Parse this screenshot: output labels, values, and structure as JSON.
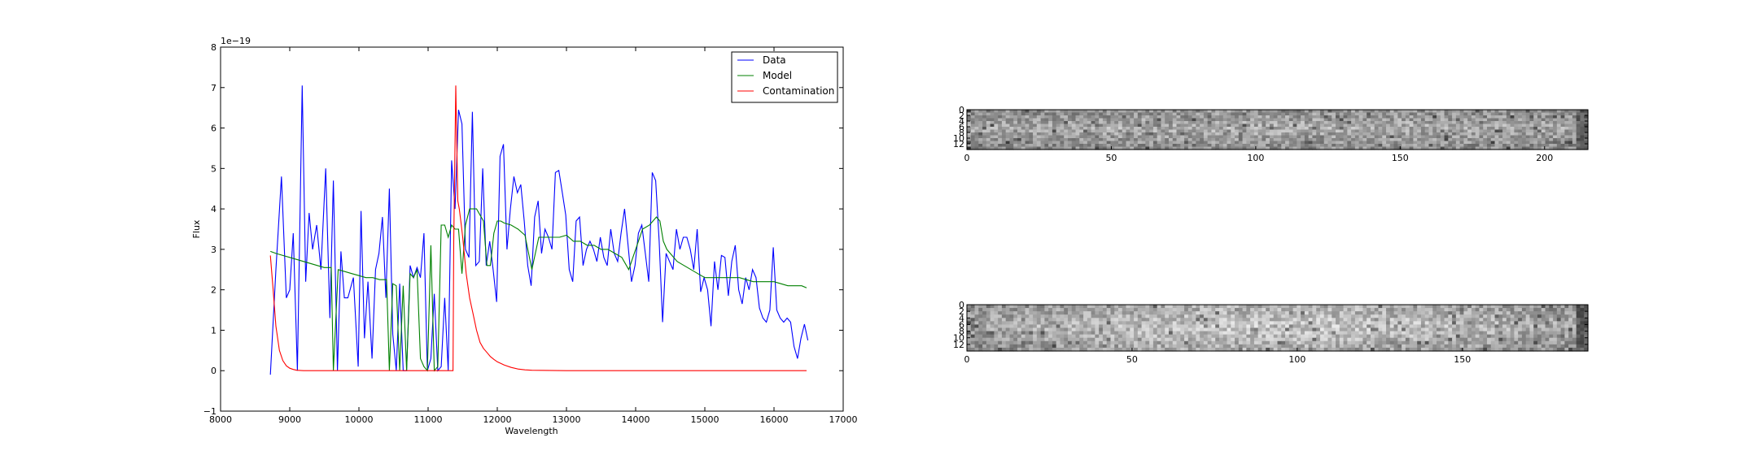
{
  "chart_data": [
    {
      "type": "line",
      "title": "",
      "xlabel": "Wavelength",
      "ylabel": "Flux",
      "offset_text": "1e−19",
      "xlim": [
        8000,
        17000
      ],
      "ylim": [
        -1,
        8
      ],
      "xticks": [
        8000,
        9000,
        10000,
        11000,
        12000,
        13000,
        14000,
        15000,
        16000,
        17000
      ],
      "xtick_labels": [
        "8000",
        "9000",
        "10000",
        "11000",
        "12000",
        "13000",
        "14000",
        "15000",
        "16000",
        "17000"
      ],
      "yticks": [
        -1,
        0,
        1,
        2,
        3,
        4,
        5,
        6,
        7,
        8
      ],
      "ytick_labels": [
        "−1",
        "0",
        "1",
        "2",
        "3",
        "4",
        "5",
        "6",
        "7",
        "8"
      ],
      "legend_position": "top-right",
      "grid": false,
      "series": [
        {
          "name": "Data",
          "color": "#0000ff",
          "x": [
            8720,
            8800,
            8880,
            8950,
            9000,
            9050,
            9110,
            9180,
            9230,
            9280,
            9330,
            9390,
            9450,
            9520,
            9580,
            9630,
            9690,
            9740,
            9790,
            9840,
            9920,
            9990,
            10030,
            10080,
            10130,
            10190,
            10240,
            10290,
            10340,
            10390,
            10440,
            10490,
            10540,
            10590,
            10640,
            10690,
            10740,
            10790,
            10840,
            10890,
            10940,
            10990,
            11040,
            11090,
            11140,
            11190,
            11240,
            11290,
            11340,
            11390,
            11440,
            11490,
            11540,
            11590,
            11640,
            11690,
            11740,
            11790,
            11840,
            11890,
            11940,
            11990,
            12040,
            12090,
            12140,
            12190,
            12240,
            12290,
            12340,
            12390,
            12440,
            12490,
            12540,
            12590,
            12640,
            12690,
            12740,
            12790,
            12840,
            12890,
            12940,
            12990,
            13040,
            13090,
            13140,
            13190,
            13240,
            13290,
            13340,
            13390,
            13440,
            13490,
            13540,
            13590,
            13640,
            13690,
            13740,
            13790,
            13840,
            13890,
            13940,
            13990,
            14040,
            14090,
            14140,
            14190,
            14240,
            14290,
            14340,
            14390,
            14440,
            14490,
            14540,
            14590,
            14640,
            14690,
            14740,
            14790,
            14840,
            14890,
            14940,
            14990,
            15040,
            15090,
            15140,
            15190,
            15240,
            15290,
            15340,
            15390,
            15440,
            15490,
            15540,
            15590,
            15640,
            15690,
            15740,
            15790,
            15840,
            15890,
            15940,
            15990,
            16040,
            16090,
            16140,
            16190,
            16240,
            16290,
            16340,
            16390,
            16440,
            16490
          ],
          "y": [
            -0.1,
            2.5,
            4.8,
            1.8,
            2.0,
            3.4,
            0.0,
            7.05,
            2.2,
            3.9,
            3.0,
            3.6,
            2.5,
            5.0,
            1.3,
            4.7,
            0.0,
            2.95,
            1.8,
            1.8,
            2.3,
            0.1,
            3.95,
            0.8,
            2.2,
            0.3,
            2.5,
            2.9,
            3.8,
            1.8,
            4.5,
            0.9,
            0.0,
            2.15,
            0.0,
            0.0,
            2.6,
            2.3,
            2.55,
            2.3,
            3.4,
            0.0,
            0.3,
            1.9,
            0.0,
            0.1,
            1.8,
            0.0,
            5.2,
            4.0,
            6.45,
            6.1,
            3.0,
            2.8,
            6.4,
            2.6,
            2.7,
            5.0,
            2.6,
            3.2,
            2.5,
            1.7,
            5.3,
            5.6,
            3.0,
            4.0,
            4.8,
            4.4,
            4.6,
            3.7,
            2.6,
            2.1,
            3.8,
            4.2,
            2.9,
            3.5,
            3.3,
            3.0,
            4.9,
            4.95,
            4.4,
            3.85,
            2.5,
            2.2,
            3.7,
            3.8,
            2.6,
            3.0,
            3.2,
            3.0,
            2.7,
            3.3,
            2.8,
            2.6,
            3.5,
            2.9,
            2.7,
            3.4,
            4.0,
            3.1,
            2.2,
            2.6,
            3.4,
            3.6,
            2.9,
            2.2,
            4.9,
            4.7,
            3.2,
            1.2,
            2.9,
            2.7,
            2.5,
            3.5,
            3.0,
            3.3,
            3.3,
            3.0,
            2.5,
            3.5,
            1.95,
            2.3,
            2.0,
            1.1,
            2.7,
            2.0,
            2.85,
            2.8,
            1.85,
            2.7,
            3.1,
            2.0,
            1.65,
            2.3,
            2.0,
            2.5,
            2.3,
            1.55,
            1.3,
            1.2,
            1.5,
            3.05,
            1.5,
            1.3,
            1.2,
            1.3,
            1.2,
            0.6,
            0.3,
            0.8,
            1.15,
            0.75
          ]
        },
        {
          "name": "Model",
          "color": "#008000",
          "x": [
            8720,
            8800,
            8900,
            9000,
            9100,
            9200,
            9300,
            9400,
            9500,
            9600,
            9630,
            9700,
            9800,
            9900,
            10000,
            10100,
            10200,
            10300,
            10400,
            10440,
            10490,
            10540,
            10590,
            10640,
            10690,
            10740,
            10790,
            10840,
            10890,
            10940,
            10990,
            11040,
            11090,
            11140,
            11190,
            11240,
            11290,
            11340,
            11390,
            11440,
            11490,
            11540,
            11600,
            11650,
            11700,
            11800,
            11850,
            11900,
            11950,
            12000,
            12050,
            12100,
            12200,
            12300,
            12400,
            12500,
            12600,
            12650,
            12700,
            12800,
            12900,
            13000,
            13100,
            13200,
            13300,
            13400,
            13500,
            13600,
            13700,
            13800,
            13900,
            14000,
            14100,
            14200,
            14300,
            14350,
            14400,
            14450,
            14500,
            14600,
            14700,
            14800,
            14900,
            15000,
            15100,
            15200,
            15300,
            15400,
            15500,
            15600,
            15700,
            15800,
            15900,
            16000,
            16100,
            16200,
            16300,
            16400,
            16470
          ],
          "y": [
            2.95,
            2.9,
            2.85,
            2.8,
            2.75,
            2.7,
            2.65,
            2.6,
            2.55,
            2.55,
            0.0,
            2.5,
            2.45,
            2.4,
            2.35,
            2.3,
            2.3,
            2.25,
            2.25,
            0.0,
            2.15,
            2.1,
            0.0,
            2.1,
            0.0,
            2.4,
            2.3,
            2.5,
            0.3,
            0.1,
            0.0,
            3.1,
            0.0,
            0.1,
            3.6,
            3.6,
            3.3,
            3.6,
            3.5,
            3.5,
            2.4,
            3.6,
            4.0,
            4.0,
            4.0,
            3.7,
            2.6,
            2.6,
            3.4,
            3.7,
            3.7,
            3.65,
            3.6,
            3.5,
            3.35,
            2.5,
            3.3,
            3.3,
            3.3,
            3.3,
            3.3,
            3.35,
            3.2,
            3.2,
            3.1,
            3.1,
            3.0,
            3.0,
            2.9,
            2.8,
            2.5,
            3.0,
            3.5,
            3.6,
            3.8,
            3.7,
            3.2,
            3.0,
            2.9,
            2.7,
            2.6,
            2.5,
            2.4,
            2.3,
            2.3,
            2.3,
            2.3,
            2.3,
            2.3,
            2.25,
            2.2,
            2.2,
            2.2,
            2.2,
            2.15,
            2.1,
            2.1,
            2.1,
            2.05
          ],
          "zero_segments_note": ""
        },
        {
          "name": "Contamination",
          "color": "#ff0000",
          "x": [
            8720,
            8760,
            8800,
            8850,
            8900,
            8950,
            9000,
            9050,
            9100,
            9200,
            9400,
            9600,
            9800,
            10000,
            10200,
            10400,
            10600,
            10800,
            11000,
            11200,
            11360,
            11370,
            11400,
            11430,
            11450,
            11480,
            11500,
            11550,
            11600,
            11650,
            11700,
            11750,
            11800,
            11850,
            11900,
            11950,
            12000,
            12100,
            12200,
            12300,
            12400,
            12500,
            13000,
            14000,
            15000,
            16000,
            16470
          ],
          "y": [
            2.85,
            2.0,
            1.1,
            0.5,
            0.25,
            0.12,
            0.06,
            0.03,
            0.01,
            0.0,
            0.0,
            0.0,
            0.0,
            0.0,
            0.0,
            0.0,
            0.0,
            0.0,
            0.0,
            0.0,
            0.0,
            3.2,
            7.05,
            4.2,
            4.0,
            3.6,
            3.3,
            2.4,
            1.8,
            1.4,
            1.0,
            0.7,
            0.55,
            0.45,
            0.35,
            0.28,
            0.22,
            0.14,
            0.08,
            0.04,
            0.02,
            0.01,
            0.0,
            0.0,
            0.0,
            0.0,
            0.0
          ]
        }
      ]
    },
    {
      "type": "heatmap",
      "title": "",
      "colormap": "gray",
      "xlim": [
        0,
        215
      ],
      "ylim": [
        0,
        14
      ],
      "xticks": [
        0,
        50,
        100,
        150,
        200
      ],
      "xtick_labels": [
        "0",
        "50",
        "100",
        "150",
        "200"
      ],
      "yticks": [
        0,
        2,
        4,
        6,
        8,
        10,
        12
      ],
      "ytick_labels": [
        "0",
        "2",
        "4",
        "6",
        "8",
        "10",
        "12"
      ],
      "note_values": "noisy grey-scale 2-D spectrum image"
    },
    {
      "type": "heatmap",
      "title": "",
      "colormap": "gray",
      "xlim": [
        0,
        188
      ],
      "ylim": [
        0,
        14
      ],
      "xticks": [
        0,
        50,
        100,
        150
      ],
      "xtick_labels": [
        "0",
        "50",
        "100",
        "150"
      ],
      "yticks": [
        0,
        2,
        4,
        6,
        8,
        10,
        12
      ],
      "ytick_labels": [
        "0",
        "2",
        "4",
        "6",
        "8",
        "10",
        "12"
      ],
      "note_values": "noisy grey-scale 2-D spectrum image with brighter central band"
    }
  ]
}
